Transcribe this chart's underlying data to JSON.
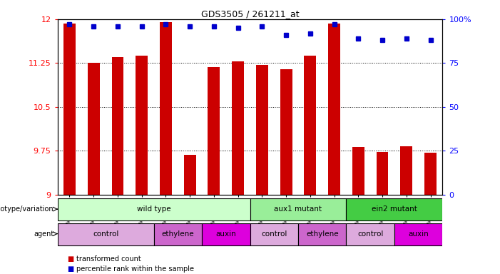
{
  "title": "GDS3505 / 261211_at",
  "samples": [
    "GSM179958",
    "GSM179959",
    "GSM179971",
    "GSM179972",
    "GSM179960",
    "GSM179961",
    "GSM179973",
    "GSM179974",
    "GSM179963",
    "GSM179967",
    "GSM179969",
    "GSM179970",
    "GSM179975",
    "GSM179976",
    "GSM179977",
    "GSM179978"
  ],
  "bar_values": [
    11.93,
    11.26,
    11.35,
    11.37,
    11.95,
    9.68,
    11.18,
    11.28,
    11.22,
    11.15,
    11.38,
    11.92,
    9.81,
    9.73,
    9.82,
    9.72
  ],
  "percentile_values": [
    97,
    96,
    96,
    96,
    97,
    96,
    96,
    95,
    96,
    91,
    92,
    97,
    89,
    88,
    89,
    88
  ],
  "y_min": 9.0,
  "y_max": 12.0,
  "y_ticks": [
    9,
    9.75,
    10.5,
    11.25,
    12
  ],
  "right_y_ticks": [
    0,
    25,
    50,
    75,
    100
  ],
  "bar_color": "#cc0000",
  "dot_color": "#0000cc",
  "genotype_groups": [
    {
      "label": "wild type",
      "start": 0,
      "end": 7,
      "color": "#ccffcc"
    },
    {
      "label": "aux1 mutant",
      "start": 8,
      "end": 11,
      "color": "#99ee99"
    },
    {
      "label": "ein2 mutant",
      "start": 12,
      "end": 15,
      "color": "#44cc44"
    }
  ],
  "agent_groups": [
    {
      "label": "control",
      "start": 0,
      "end": 3,
      "color": "#ddaadd"
    },
    {
      "label": "ethylene",
      "start": 4,
      "end": 5,
      "color": "#cc66cc"
    },
    {
      "label": "auxin",
      "start": 6,
      "end": 7,
      "color": "#dd00dd"
    },
    {
      "label": "control",
      "start": 8,
      "end": 9,
      "color": "#ddaadd"
    },
    {
      "label": "ethylene",
      "start": 10,
      "end": 11,
      "color": "#cc66cc"
    },
    {
      "label": "control",
      "start": 12,
      "end": 13,
      "color": "#ddaadd"
    },
    {
      "label": "auxin",
      "start": 14,
      "end": 15,
      "color": "#dd00dd"
    }
  ]
}
